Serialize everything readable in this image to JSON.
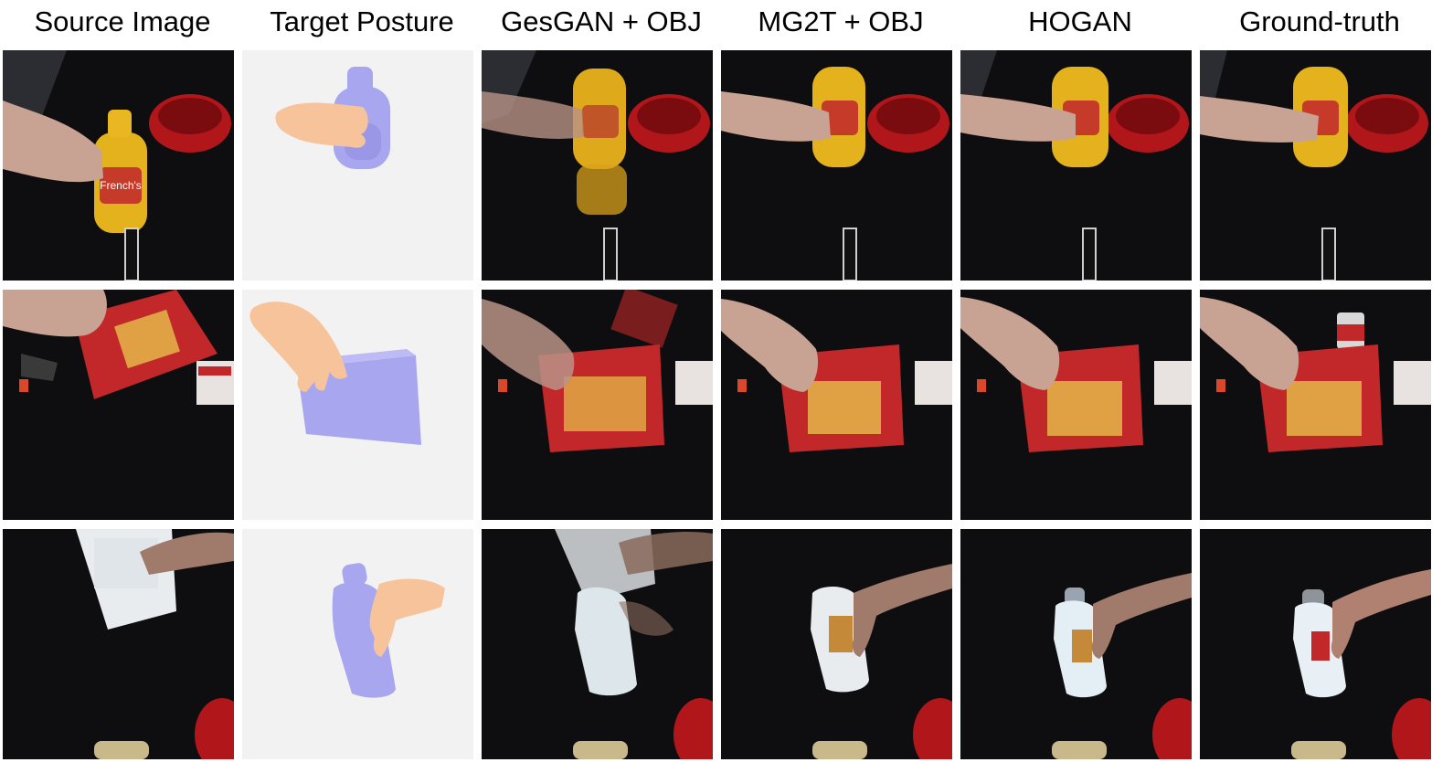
{
  "columns": [
    {
      "label": "Source Image"
    },
    {
      "label": "Target Posture"
    },
    {
      "label": "GesGAN + OBJ"
    },
    {
      "label": "MG2T + OBJ"
    },
    {
      "label": "HOGAN"
    },
    {
      "label": "Ground-truth"
    }
  ],
  "rows": [
    {
      "object": "mustard-bottle"
    },
    {
      "object": "cracker-box"
    },
    {
      "object": "bleach-bottle"
    }
  ],
  "colors": {
    "table": "#0d0d0f",
    "render_background": "#f2f2f2",
    "render_object": "#a9a6f0",
    "render_hand": "#f7c39a",
    "mustard": "#e4b21d",
    "cracker_box": "#c2282a",
    "bleach": "#e8ecef",
    "bowl": "#b0161a",
    "skin": "#c89a88"
  }
}
